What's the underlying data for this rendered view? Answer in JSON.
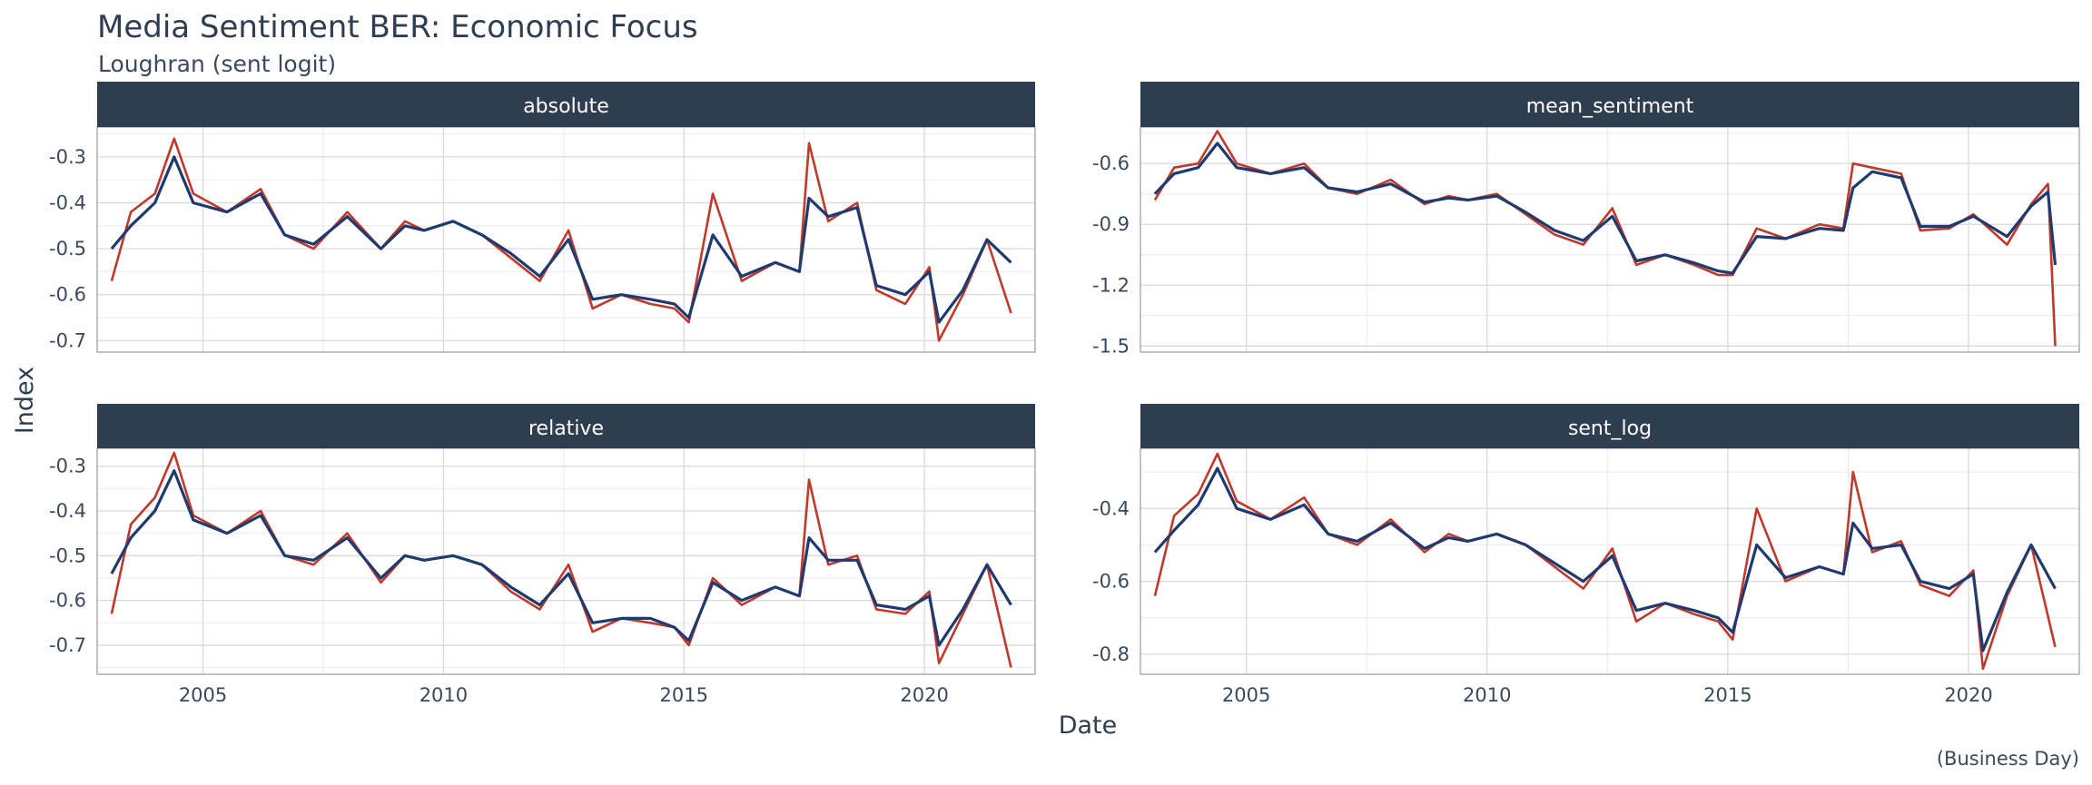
{
  "chart_data": {
    "type": "line",
    "title": "Media Sentiment BER: Economic Focus",
    "subtitle": "Loughran (sent logit)",
    "caption": "(Business Day)",
    "xlabel": "Date",
    "ylabel": "Index",
    "series_colors": [
      "#c0392b",
      "#1f3a6e"
    ],
    "strip_color": "#2e3e50",
    "grid": true,
    "x_ticks": [
      2005,
      2010,
      2015,
      2020
    ],
    "x_range": [
      2002.8,
      2022.3
    ],
    "panels": [
      {
        "name": "absolute",
        "y_range": [
          -0.725,
          -0.235
        ],
        "y_ticks": [
          -0.3,
          -0.4,
          -0.5,
          -0.6,
          -0.7
        ],
        "y_tick_labels": [
          "-0.3",
          "-0.4",
          "-0.5",
          "-0.6",
          "-0.7"
        ],
        "x": [
          2003.1,
          2003.5,
          2004.0,
          2004.4,
          2004.8,
          2005.5,
          2006.2,
          2006.7,
          2007.3,
          2008.0,
          2008.7,
          2009.2,
          2009.6,
          2010.2,
          2010.8,
          2011.4,
          2012.0,
          2012.6,
          2013.1,
          2013.7,
          2014.3,
          2014.8,
          2015.1,
          2015.6,
          2016.2,
          2016.9,
          2017.4,
          2017.6,
          2018.0,
          2018.6,
          2019.0,
          2019.6,
          2020.1,
          2020.3,
          2020.8,
          2021.3,
          2021.8
        ],
        "series": [
          {
            "values": [
              -0.57,
              -0.42,
              -0.38,
              -0.26,
              -0.38,
              -0.42,
              -0.37,
              -0.47,
              -0.5,
              -0.42,
              -0.5,
              -0.44,
              -0.46,
              -0.44,
              -0.47,
              -0.52,
              -0.57,
              -0.46,
              -0.63,
              -0.6,
              -0.62,
              -0.63,
              -0.66,
              -0.38,
              -0.57,
              -0.53,
              -0.55,
              -0.27,
              -0.44,
              -0.4,
              -0.59,
              -0.62,
              -0.54,
              -0.7,
              -0.6,
              -0.48,
              -0.64
            ]
          },
          {
            "values": [
              -0.5,
              -0.45,
              -0.4,
              -0.3,
              -0.4,
              -0.42,
              -0.38,
              -0.47,
              -0.49,
              -0.43,
              -0.5,
              -0.45,
              -0.46,
              -0.44,
              -0.47,
              -0.51,
              -0.56,
              -0.48,
              -0.61,
              -0.6,
              -0.61,
              -0.62,
              -0.65,
              -0.47,
              -0.56,
              -0.53,
              -0.55,
              -0.39,
              -0.43,
              -0.41,
              -0.58,
              -0.6,
              -0.55,
              -0.66,
              -0.59,
              -0.48,
              -0.53
            ]
          }
        ]
      },
      {
        "name": "mean_sentiment",
        "y_range": [
          -1.53,
          -0.42
        ],
        "y_ticks": [
          -0.6,
          -0.9,
          -1.2,
          -1.5
        ],
        "y_tick_labels": [
          "-0.6",
          "-0.9",
          "-1.2",
          "-1.5"
        ],
        "x": [
          2003.1,
          2003.5,
          2004.0,
          2004.4,
          2004.8,
          2005.5,
          2006.2,
          2006.7,
          2007.3,
          2008.0,
          2008.7,
          2009.2,
          2009.6,
          2010.2,
          2010.8,
          2011.4,
          2012.0,
          2012.6,
          2013.1,
          2013.7,
          2014.3,
          2014.8,
          2015.1,
          2015.6,
          2016.2,
          2016.9,
          2017.4,
          2017.6,
          2018.0,
          2018.6,
          2019.0,
          2019.6,
          2020.1,
          2020.8,
          2021.3,
          2021.65,
          2021.8
        ],
        "series": [
          {
            "values": [
              -0.78,
              -0.62,
              -0.6,
              -0.44,
              -0.6,
              -0.65,
              -0.6,
              -0.72,
              -0.75,
              -0.68,
              -0.8,
              -0.76,
              -0.78,
              -0.75,
              -0.85,
              -0.95,
              -1.0,
              -0.82,
              -1.1,
              -1.05,
              -1.1,
              -1.15,
              -1.15,
              -0.92,
              -0.97,
              -0.9,
              -0.92,
              -0.6,
              -0.62,
              -0.65,
              -0.93,
              -0.92,
              -0.85,
              -1.0,
              -0.8,
              -0.7,
              -1.5
            ]
          },
          {
            "values": [
              -0.75,
              -0.65,
              -0.62,
              -0.5,
              -0.62,
              -0.65,
              -0.62,
              -0.72,
              -0.74,
              -0.7,
              -0.79,
              -0.77,
              -0.78,
              -0.76,
              -0.84,
              -0.93,
              -0.98,
              -0.86,
              -1.08,
              -1.05,
              -1.09,
              -1.13,
              -1.14,
              -0.96,
              -0.97,
              -0.92,
              -0.93,
              -0.72,
              -0.64,
              -0.67,
              -0.91,
              -0.91,
              -0.86,
              -0.96,
              -0.81,
              -0.74,
              -1.1
            ]
          }
        ]
      },
      {
        "name": "relative",
        "y_range": [
          -0.765,
          -0.26
        ],
        "y_ticks": [
          -0.3,
          -0.4,
          -0.5,
          -0.6,
          -0.7
        ],
        "y_tick_labels": [
          "-0.3",
          "-0.4",
          "-0.5",
          "-0.6",
          "-0.7"
        ],
        "x": [
          2003.1,
          2003.5,
          2004.0,
          2004.4,
          2004.8,
          2005.5,
          2006.2,
          2006.7,
          2007.3,
          2008.0,
          2008.7,
          2009.2,
          2009.6,
          2010.2,
          2010.8,
          2011.4,
          2012.0,
          2012.6,
          2013.1,
          2013.7,
          2014.3,
          2014.8,
          2015.1,
          2015.6,
          2016.2,
          2016.9,
          2017.4,
          2017.6,
          2018.0,
          2018.6,
          2019.0,
          2019.6,
          2020.1,
          2020.3,
          2020.8,
          2021.3,
          2021.8
        ],
        "series": [
          {
            "values": [
              -0.63,
              -0.43,
              -0.37,
              -0.27,
              -0.41,
              -0.45,
              -0.4,
              -0.5,
              -0.52,
              -0.45,
              -0.56,
              -0.5,
              -0.51,
              -0.5,
              -0.52,
              -0.58,
              -0.62,
              -0.52,
              -0.67,
              -0.64,
              -0.65,
              -0.66,
              -0.7,
              -0.55,
              -0.61,
              -0.57,
              -0.59,
              -0.33,
              -0.52,
              -0.5,
              -0.62,
              -0.63,
              -0.58,
              -0.74,
              -0.63,
              -0.52,
              -0.75
            ]
          },
          {
            "values": [
              -0.54,
              -0.46,
              -0.4,
              -0.31,
              -0.42,
              -0.45,
              -0.41,
              -0.5,
              -0.51,
              -0.46,
              -0.55,
              -0.5,
              -0.51,
              -0.5,
              -0.52,
              -0.57,
              -0.61,
              -0.54,
              -0.65,
              -0.64,
              -0.64,
              -0.66,
              -0.69,
              -0.56,
              -0.6,
              -0.57,
              -0.59,
              -0.46,
              -0.51,
              -0.51,
              -0.61,
              -0.62,
              -0.59,
              -0.7,
              -0.62,
              -0.52,
              -0.61
            ]
          }
        ]
      },
      {
        "name": "sent_log",
        "y_range": [
          -0.855,
          -0.235
        ],
        "y_ticks": [
          -0.4,
          -0.6,
          -0.8
        ],
        "y_tick_labels": [
          "-0.4",
          "-0.6",
          "-0.8"
        ],
        "x": [
          2003.1,
          2003.5,
          2004.0,
          2004.4,
          2004.8,
          2005.5,
          2006.2,
          2006.7,
          2007.3,
          2008.0,
          2008.7,
          2009.2,
          2009.6,
          2010.2,
          2010.8,
          2011.4,
          2012.0,
          2012.6,
          2013.1,
          2013.7,
          2014.3,
          2014.8,
          2015.1,
          2015.6,
          2016.2,
          2016.9,
          2017.4,
          2017.6,
          2018.0,
          2018.6,
          2019.0,
          2019.6,
          2020.1,
          2020.3,
          2020.8,
          2021.3,
          2021.8
        ],
        "series": [
          {
            "values": [
              -0.64,
              -0.42,
              -0.36,
              -0.25,
              -0.38,
              -0.43,
              -0.37,
              -0.47,
              -0.5,
              -0.43,
              -0.52,
              -0.47,
              -0.49,
              -0.47,
              -0.5,
              -0.56,
              -0.62,
              -0.51,
              -0.71,
              -0.66,
              -0.69,
              -0.71,
              -0.76,
              -0.4,
              -0.6,
              -0.56,
              -0.58,
              -0.3,
              -0.52,
              -0.49,
              -0.61,
              -0.64,
              -0.57,
              -0.84,
              -0.64,
              -0.5,
              -0.78
            ]
          },
          {
            "values": [
              -0.52,
              -0.46,
              -0.39,
              -0.29,
              -0.4,
              -0.43,
              -0.39,
              -0.47,
              -0.49,
              -0.44,
              -0.51,
              -0.48,
              -0.49,
              -0.47,
              -0.5,
              -0.55,
              -0.6,
              -0.53,
              -0.68,
              -0.66,
              -0.68,
              -0.7,
              -0.74,
              -0.5,
              -0.59,
              -0.56,
              -0.58,
              -0.44,
              -0.51,
              -0.5,
              -0.6,
              -0.62,
              -0.58,
              -0.79,
              -0.63,
              -0.5,
              -0.62
            ]
          }
        ]
      }
    ]
  }
}
